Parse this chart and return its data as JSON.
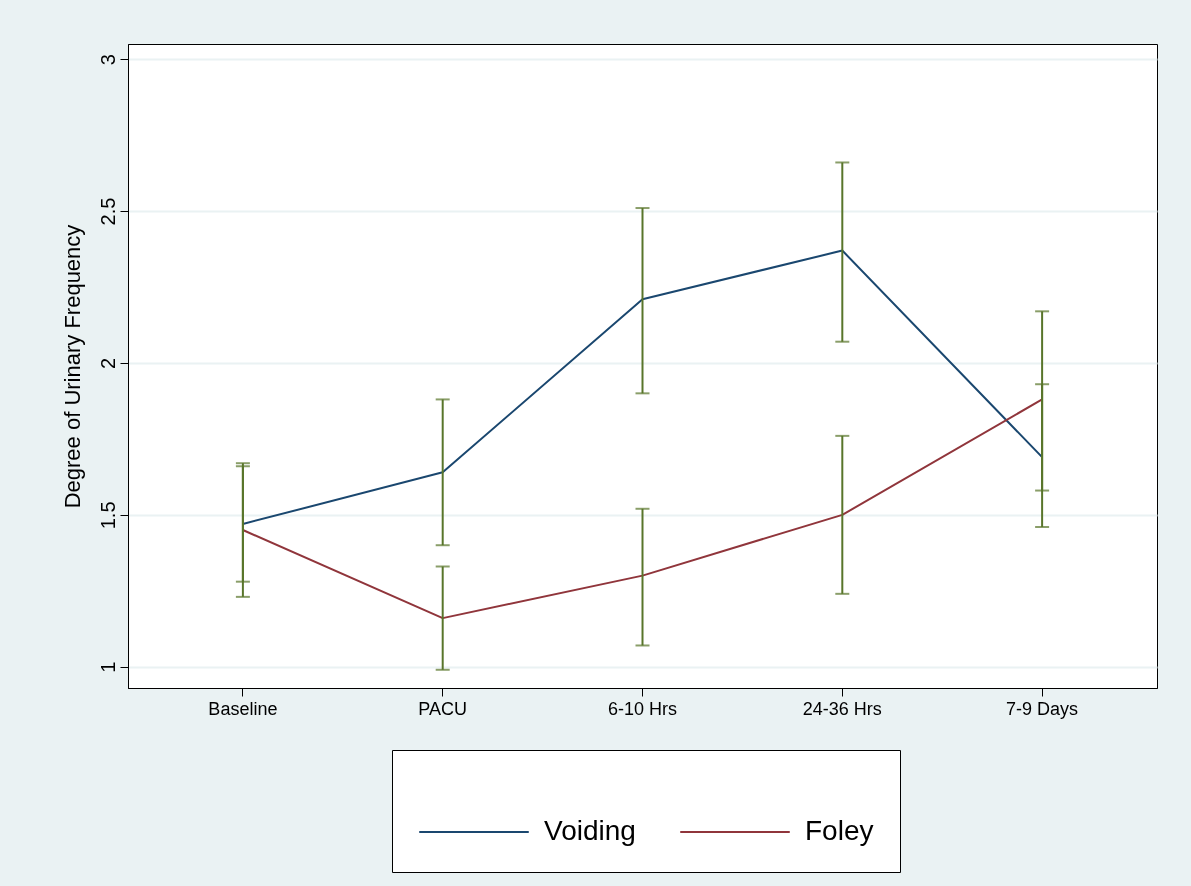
{
  "chart_data": {
    "type": "line",
    "ylabel": "Degree of Urinary Frequency",
    "categories": [
      "Baseline",
      "PACU",
      "6-10 Hrs",
      "24-36 Hrs",
      "7-9 Days"
    ],
    "series": [
      {
        "name": "Voiding",
        "color": "#1a476f",
        "values": [
          1.47,
          1.64,
          2.21,
          2.37,
          1.69
        ],
        "errors": [
          [
            1.28,
            1.66
          ],
          [
            1.4,
            1.88
          ],
          [
            1.9,
            2.51
          ],
          [
            2.07,
            2.66
          ],
          [
            1.46,
            1.93
          ]
        ]
      },
      {
        "name": "Foley",
        "color": "#90353b",
        "values": [
          1.45,
          1.16,
          1.3,
          1.5,
          1.88
        ],
        "errors": [
          [
            1.23,
            1.67
          ],
          [
            0.99,
            1.33
          ],
          [
            1.07,
            1.52
          ],
          [
            1.24,
            1.76
          ],
          [
            1.58,
            2.17
          ]
        ]
      }
    ],
    "ylim": [
      0.93,
      3.05
    ],
    "yticks": [
      1,
      1.5,
      2,
      2.5,
      3
    ],
    "grid": "y",
    "legend": "bottom",
    "marker": "none",
    "line_style": "solid"
  }
}
